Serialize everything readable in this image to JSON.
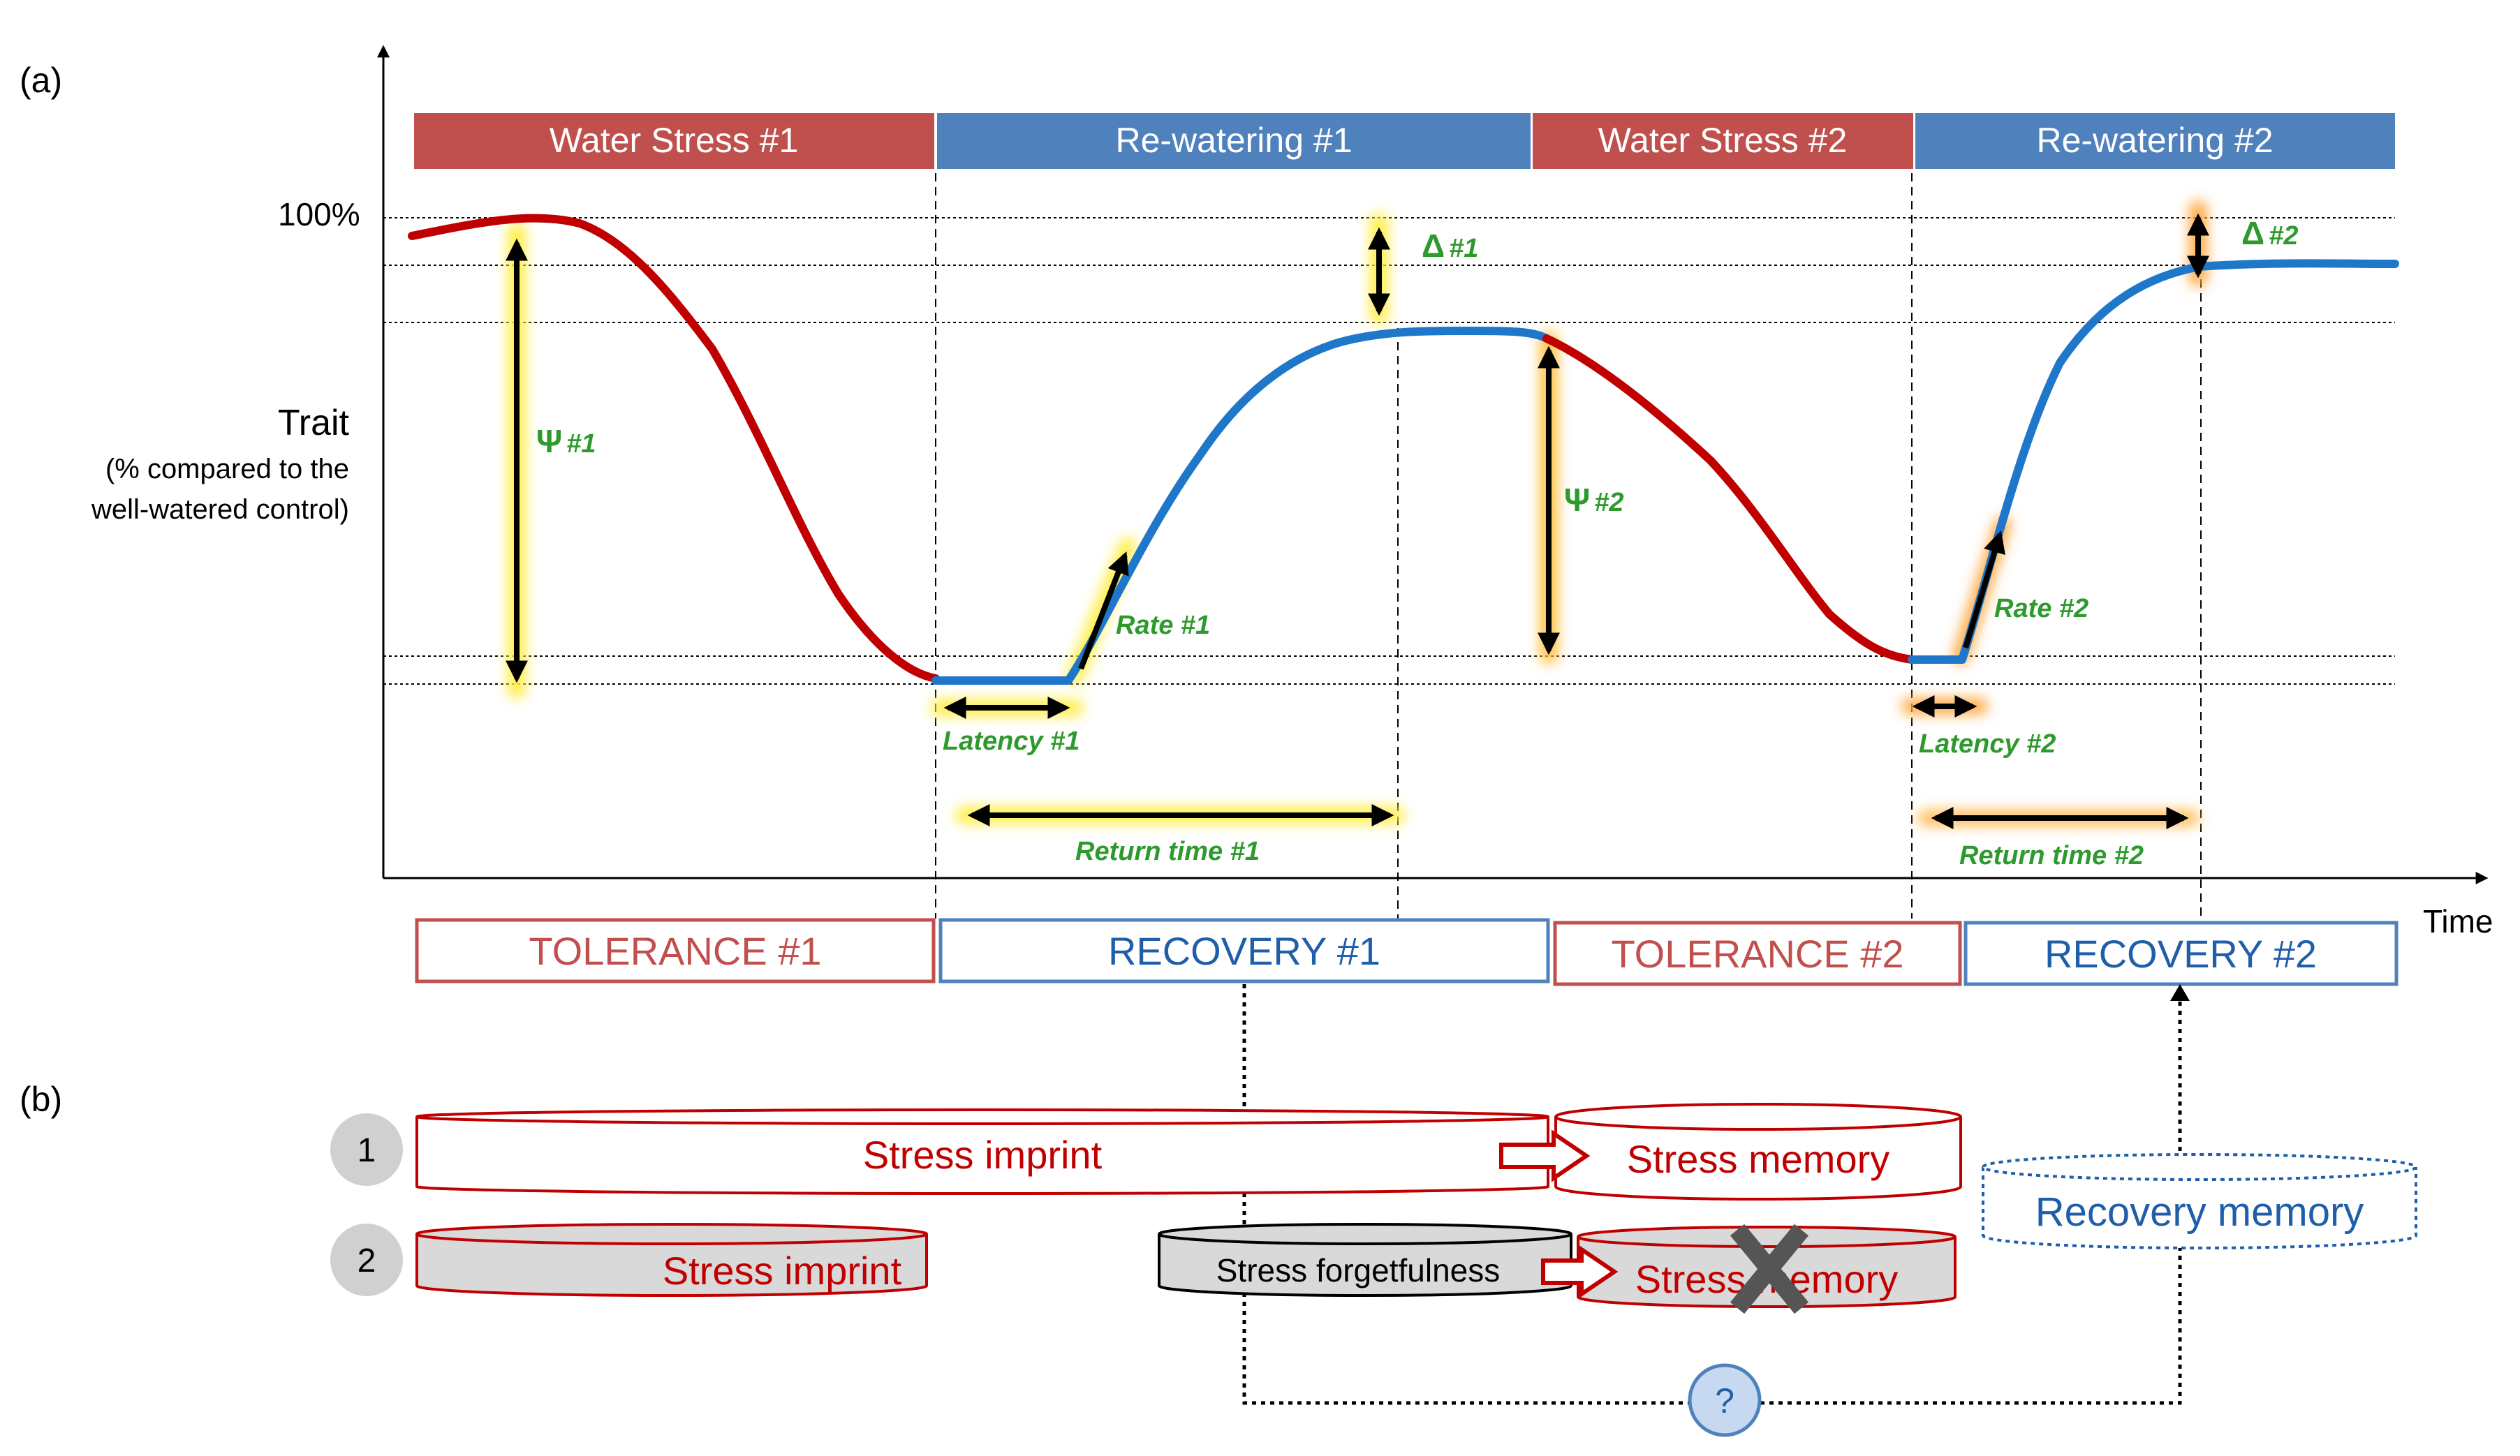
{
  "panel_a": {
    "label": "(a)",
    "y_axis": {
      "label": "Trait",
      "sublabel_line1": "(% compared to the",
      "sublabel_line2": "well-watered control)",
      "tick_100": "100%"
    },
    "x_axis_label": "Time",
    "phases": [
      {
        "label": "Water Stress #1",
        "kind": "stress"
      },
      {
        "label": "Re-watering #1",
        "kind": "rewater"
      },
      {
        "label": "Water Stress #2",
        "kind": "stress"
      },
      {
        "label": "Re-watering #2",
        "kind": "rewater"
      }
    ],
    "metrics": {
      "psi1": "#1",
      "psi2": "#2",
      "delta1": "#1",
      "delta2": "#2",
      "rate1": "Rate #1",
      "rate2": "Rate #2",
      "latency1": "Latency #1",
      "latency2": "Latency #2",
      "return1": "Return time #1",
      "return2": "Return time #2"
    },
    "outcomes": [
      {
        "label": "TOLERANCE #1",
        "kind": "tolerance"
      },
      {
        "label": "RECOVERY #1",
        "kind": "recovery"
      },
      {
        "label": "TOLERANCE #2",
        "kind": "tolerance"
      },
      {
        "label": "RECOVERY #2",
        "kind": "recovery"
      }
    ]
  },
  "panel_b": {
    "label": "(b)",
    "scenario1": {
      "number": "1",
      "imprint": "Stress imprint",
      "memory": "Stress memory"
    },
    "scenario2": {
      "number": "2",
      "imprint": "Stress imprint",
      "forgetfulness": "Stress forgetfulness",
      "memory": "Stress memory"
    },
    "recovery_memory": "Recovery memory",
    "question_mark": "?"
  },
  "colors": {
    "stress_red": "#c0504d",
    "curve_red": "#c00000",
    "rewater_blue": "#4f81bd",
    "curve_blue": "#1f77c9",
    "annotation_green": "#2e9a2e",
    "recovery_text_blue": "#1f5ea8",
    "gray_fill": "#d9d9d9"
  }
}
